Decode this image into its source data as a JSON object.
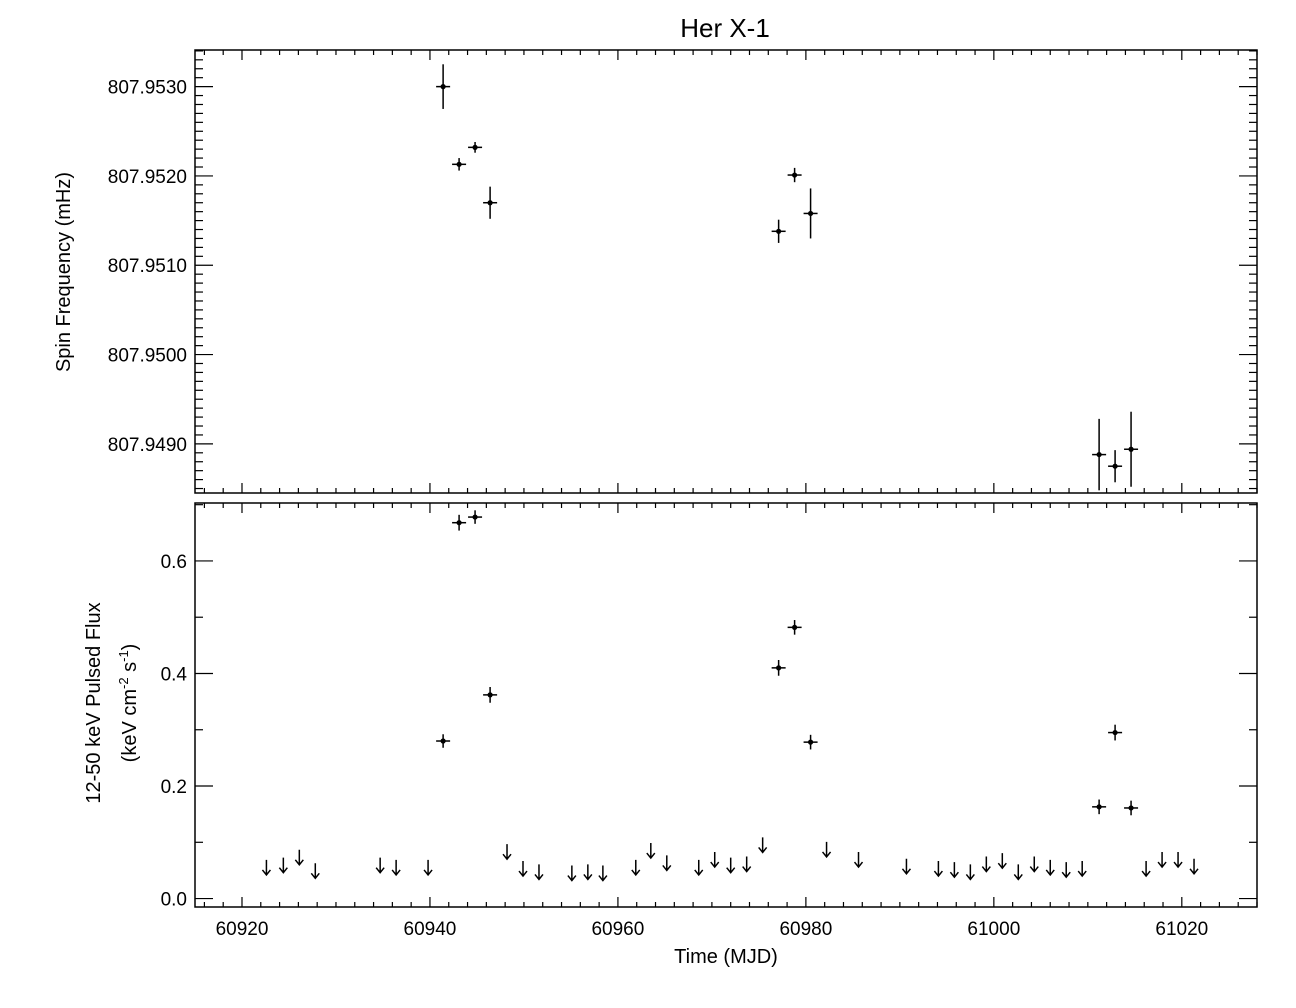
{
  "chart_data": [
    {
      "type": "scatter",
      "title": "Her X-1",
      "ylabel": "Spin Frequency (mHz)",
      "xlim": [
        60915,
        61028
      ],
      "ylim": [
        807.94845,
        807.95341
      ],
      "yticks": [
        "807.9490",
        "807.9500",
        "807.9510",
        "807.9520",
        "807.9530"
      ],
      "grid": false,
      "series": [
        {
          "points": [
            {
              "x": 60941.4,
              "y": 807.953,
              "yerr": 0.00025
            },
            {
              "x": 60943.1,
              "y": 807.95213,
              "yerr": 7e-05
            },
            {
              "x": 60944.8,
              "y": 807.95232,
              "yerr": 6e-05
            },
            {
              "x": 60946.4,
              "y": 807.9517,
              "yerr": 0.00018
            },
            {
              "x": 60977.1,
              "y": 807.95138,
              "yerr": 0.00013
            },
            {
              "x": 60978.8,
              "y": 807.95201,
              "yerr": 8e-05
            },
            {
              "x": 60980.5,
              "y": 807.95158,
              "yerr": 0.00028
            },
            {
              "x": 61011.2,
              "y": 807.94888,
              "yerr": 0.0004
            },
            {
              "x": 61012.9,
              "y": 807.94875,
              "yerr": 0.00018
            },
            {
              "x": 61014.6,
              "y": 807.94894,
              "yerr": 0.00042
            }
          ]
        }
      ]
    },
    {
      "type": "scatter",
      "xlabel": "Time (MJD)",
      "ylabel_line1": "12-50 keV Pulsed Flux",
      "ylabel_line2": "(keV cm",
      "ylabel_sup1": "-2",
      "ylabel_mid": " s",
      "ylabel_sup2": "-1",
      "ylabel_end": ")",
      "xlim": [
        60915,
        61028
      ],
      "ylim": [
        -0.015,
        0.703
      ],
      "xticks": [
        "60920",
        "60940",
        "60960",
        "60980",
        "61000",
        "61020"
      ],
      "yticks": [
        "0.0",
        "0.2",
        "0.4",
        "0.6"
      ],
      "grid": false,
      "series": [
        {
          "kind": "detections",
          "points": [
            {
              "x": 60941.4,
              "y": 0.28,
              "yerr": 0.012
            },
            {
              "x": 60943.1,
              "y": 0.668,
              "yerr": 0.014
            },
            {
              "x": 60944.8,
              "y": 0.678,
              "yerr": 0.012
            },
            {
              "x": 60946.4,
              "y": 0.362,
              "yerr": 0.014
            },
            {
              "x": 60977.1,
              "y": 0.41,
              "yerr": 0.014
            },
            {
              "x": 60978.8,
              "y": 0.482,
              "yerr": 0.013
            },
            {
              "x": 60980.5,
              "y": 0.278,
              "yerr": 0.013
            },
            {
              "x": 61011.2,
              "y": 0.163,
              "yerr": 0.013
            },
            {
              "x": 61012.9,
              "y": 0.295,
              "yerr": 0.014
            },
            {
              "x": 61014.6,
              "y": 0.161,
              "yerr": 0.013
            }
          ]
        },
        {
          "kind": "upper_limits",
          "points": [
            {
              "x": 60922.6,
              "y": 0.042
            },
            {
              "x": 60924.4,
              "y": 0.046
            },
            {
              "x": 60926.1,
              "y": 0.06
            },
            {
              "x": 60927.8,
              "y": 0.036
            },
            {
              "x": 60934.7,
              "y": 0.046
            },
            {
              "x": 60936.4,
              "y": 0.042
            },
            {
              "x": 60939.8,
              "y": 0.042
            },
            {
              "x": 60948.2,
              "y": 0.07
            },
            {
              "x": 60949.9,
              "y": 0.04
            },
            {
              "x": 60951.6,
              "y": 0.034
            },
            {
              "x": 60955.1,
              "y": 0.032
            },
            {
              "x": 60956.8,
              "y": 0.034
            },
            {
              "x": 60958.4,
              "y": 0.032
            },
            {
              "x": 60961.9,
              "y": 0.042
            },
            {
              "x": 60963.5,
              "y": 0.072
            },
            {
              "x": 60965.2,
              "y": 0.05
            },
            {
              "x": 60968.6,
              "y": 0.042
            },
            {
              "x": 60970.3,
              "y": 0.056
            },
            {
              "x": 60972.0,
              "y": 0.046
            },
            {
              "x": 60973.7,
              "y": 0.048
            },
            {
              "x": 60975.4,
              "y": 0.082
            },
            {
              "x": 60982.2,
              "y": 0.074
            },
            {
              "x": 60985.6,
              "y": 0.056
            },
            {
              "x": 60990.7,
              "y": 0.044
            },
            {
              "x": 60994.1,
              "y": 0.04
            },
            {
              "x": 60995.8,
              "y": 0.038
            },
            {
              "x": 60997.5,
              "y": 0.034
            },
            {
              "x": 60999.2,
              "y": 0.048
            },
            {
              "x": 61000.9,
              "y": 0.054
            },
            {
              "x": 61002.6,
              "y": 0.034
            },
            {
              "x": 61004.3,
              "y": 0.048
            },
            {
              "x": 61006.0,
              "y": 0.042
            },
            {
              "x": 61007.7,
              "y": 0.038
            },
            {
              "x": 61009.4,
              "y": 0.04
            },
            {
              "x": 61016.2,
              "y": 0.04
            },
            {
              "x": 61017.9,
              "y": 0.056
            },
            {
              "x": 61019.6,
              "y": 0.056
            },
            {
              "x": 61021.3,
              "y": 0.044
            }
          ]
        }
      ]
    }
  ]
}
